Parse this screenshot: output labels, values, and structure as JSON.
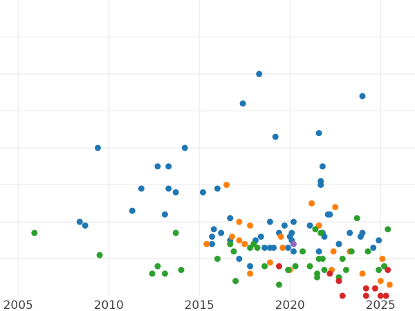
{
  "chart_data": {
    "type": "scatter",
    "title": "",
    "xlabel": "",
    "ylabel": "",
    "xlim": [
      2004.0,
      2026.9
    ],
    "ylim": [
      0,
      8.0
    ],
    "x_ticks": [
      2005,
      2010,
      2015,
      2020,
      2025
    ],
    "x_tick_labels": [
      "2005",
      "2010",
      "2015",
      "2020",
      "2025"
    ],
    "y_gridlines": [
      1,
      2,
      3,
      4,
      5,
      6,
      7
    ],
    "grid": true,
    "legend": "none",
    "series": [
      {
        "color": "#1f77b4",
        "points": [
          [
            2008.4,
            2.0
          ],
          [
            2008.7,
            1.9
          ],
          [
            2009.4,
            4.0
          ],
          [
            2011.3,
            2.3
          ],
          [
            2011.8,
            2.9
          ],
          [
            2012.7,
            3.5
          ],
          [
            2013.1,
            2.2
          ],
          [
            2013.3,
            2.9
          ],
          [
            2013.3,
            3.5
          ],
          [
            2013.7,
            2.8
          ],
          [
            2014.2,
            4.0
          ],
          [
            2015.2,
            2.8
          ],
          [
            2015.7,
            1.4
          ],
          [
            2015.7,
            1.6
          ],
          [
            2015.8,
            1.8
          ],
          [
            2016.0,
            2.9
          ],
          [
            2016.2,
            1.7
          ],
          [
            2016.7,
            1.5
          ],
          [
            2016.7,
            2.1
          ],
          [
            2017.2,
            1.0
          ],
          [
            2017.4,
            5.2
          ],
          [
            2017.8,
            0.8
          ],
          [
            2018.1,
            1.5
          ],
          [
            2018.3,
            6.0
          ],
          [
            2018.4,
            1.6
          ],
          [
            2018.6,
            1.3
          ],
          [
            2018.9,
            2.0
          ],
          [
            2018.9,
            1.3
          ],
          [
            2019.1,
            1.3
          ],
          [
            2019.2,
            4.3
          ],
          [
            2019.4,
            1.7
          ],
          [
            2019.7,
            1.9
          ],
          [
            2019.9,
            1.3
          ],
          [
            2020.0,
            1.6
          ],
          [
            2020.1,
            1.7
          ],
          [
            2020.1,
            1.5
          ],
          [
            2020.2,
            2.0
          ],
          [
            2020.2,
            1.2
          ],
          [
            2021.1,
            1.9
          ],
          [
            2021.6,
            1.2
          ],
          [
            2021.6,
            4.4
          ],
          [
            2021.7,
            3.0
          ],
          [
            2021.7,
            3.1
          ],
          [
            2021.8,
            3.5
          ],
          [
            2021.8,
            1.7
          ],
          [
            2021.9,
            1.6
          ],
          [
            2022.1,
            2.2
          ],
          [
            2022.2,
            2.2
          ],
          [
            2022.7,
            1.4
          ],
          [
            2023.3,
            1.7
          ],
          [
            2023.9,
            1.6
          ],
          [
            2024.0,
            1.7
          ],
          [
            2024.0,
            5.4
          ],
          [
            2024.6,
            1.3
          ],
          [
            2024.9,
            1.5
          ]
        ]
      },
      {
        "color": "#ff7f0e",
        "points": [
          [
            2015.4,
            1.4
          ],
          [
            2016.5,
            3.0
          ],
          [
            2016.8,
            1.6
          ],
          [
            2017.2,
            1.5
          ],
          [
            2017.2,
            2.0
          ],
          [
            2017.5,
            1.4
          ],
          [
            2017.8,
            0.6
          ],
          [
            2017.8,
            1.9
          ],
          [
            2018.9,
            0.9
          ],
          [
            2019.5,
            1.6
          ],
          [
            2019.6,
            1.3
          ],
          [
            2020.0,
            0.7
          ],
          [
            2021.2,
            2.5
          ],
          [
            2021.6,
            1.9
          ],
          [
            2022.3,
            0.7
          ],
          [
            2022.4,
            1.2
          ],
          [
            2022.5,
            2.4
          ],
          [
            2023.3,
            1.2
          ],
          [
            2024.0,
            0.6
          ],
          [
            2025.0,
            0.4
          ],
          [
            2025.1,
            1.0
          ],
          [
            2025.5,
            0.3
          ]
        ]
      },
      {
        "color": "#2ca02c",
        "points": [
          [
            2005.9,
            1.7
          ],
          [
            2009.5,
            1.1
          ],
          [
            2012.4,
            0.6
          ],
          [
            2012.7,
            0.8
          ],
          [
            2013.1,
            0.6
          ],
          [
            2013.7,
            1.7
          ],
          [
            2014.0,
            0.7
          ],
          [
            2016.0,
            1.0
          ],
          [
            2016.7,
            1.4
          ],
          [
            2016.9,
            1.2
          ],
          [
            2017.0,
            0.4
          ],
          [
            2017.8,
            1.3
          ],
          [
            2018.0,
            1.4
          ],
          [
            2018.2,
            1.3
          ],
          [
            2018.6,
            0.8
          ],
          [
            2019.4,
            0.3
          ],
          [
            2019.9,
            0.7
          ],
          [
            2020.3,
            0.8
          ],
          [
            2020.7,
            1.2
          ],
          [
            2021.1,
            0.8
          ],
          [
            2021.4,
            1.8
          ],
          [
            2021.5,
            0.5
          ],
          [
            2021.5,
            0.6
          ],
          [
            2021.6,
            1.0
          ],
          [
            2021.7,
            1.7
          ],
          [
            2021.8,
            1.0
          ],
          [
            2021.9,
            0.7
          ],
          [
            2022.7,
            0.5
          ],
          [
            2022.9,
            1.0
          ],
          [
            2023.1,
            0.7
          ],
          [
            2023.4,
            1.2
          ],
          [
            2023.7,
            2.1
          ],
          [
            2024.3,
            1.2
          ],
          [
            2024.9,
            0.7
          ],
          [
            2025.2,
            0.8
          ],
          [
            2025.4,
            1.8
          ]
        ]
      },
      {
        "color": "#d62728",
        "points": [
          [
            2019.4,
            0.8
          ],
          [
            2022.2,
            0.6
          ],
          [
            2022.7,
            0.4
          ],
          [
            2022.9,
            0.0
          ],
          [
            2024.2,
            0.0
          ],
          [
            2024.2,
            0.2
          ],
          [
            2024.7,
            0.2
          ],
          [
            2025.0,
            0.0
          ],
          [
            2025.3,
            0.0
          ],
          [
            2025.4,
            0.7
          ]
        ]
      },
      {
        "color": "#9467bd",
        "points": [
          [
            2020.2,
            1.4
          ]
        ]
      }
    ]
  }
}
